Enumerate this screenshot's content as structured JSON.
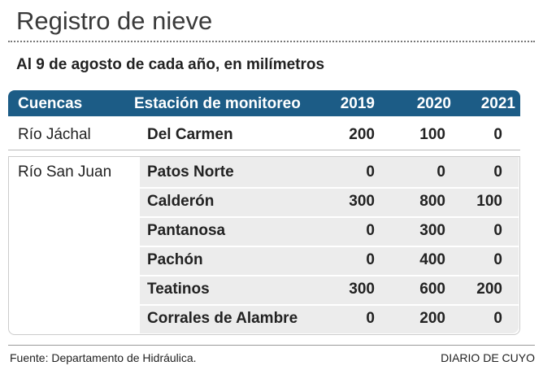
{
  "header": {
    "title": "Registro de nieve",
    "subtitle": "Al 9 de agosto de cada año, en milímetros"
  },
  "table": {
    "columns": [
      "Cuencas",
      "Estación de monitoreo",
      "2019",
      "2020",
      "2021"
    ],
    "groups": [
      {
        "basin": "Río Jáchal",
        "rows": [
          [
            "Del Carmen",
            200,
            100,
            0
          ]
        ]
      },
      {
        "basin": "Río San Juan",
        "rows": [
          [
            "Patos Norte",
            0,
            0,
            0
          ],
          [
            "Calderón",
            300,
            800,
            100
          ],
          [
            "Pantanosa",
            0,
            300,
            0
          ],
          [
            "Pachón",
            0,
            400,
            0
          ],
          [
            "Teatinos",
            300,
            600,
            200
          ],
          [
            "Corrales de Alambre",
            0,
            200,
            0
          ]
        ]
      }
    ]
  },
  "footer": {
    "source": "Fuente: Departamento de Hidráulica.",
    "credit": "DIARIO DE CUYO"
  }
}
